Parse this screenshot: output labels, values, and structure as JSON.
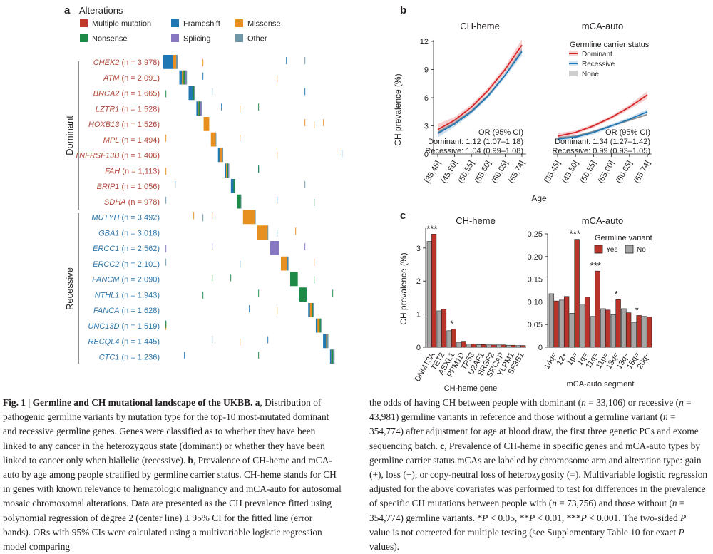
{
  "panel_a": {
    "label": "a",
    "legend_title": "Alterations",
    "legend": [
      {
        "name": "Multiple mutation",
        "color": "#c0392b"
      },
      {
        "name": "Frameshift",
        "color": "#1f77b4"
      },
      {
        "name": "Missense",
        "color": "#e8901f"
      },
      {
        "name": "Nonsense",
        "color": "#1e8a48"
      },
      {
        "name": "Splicing",
        "color": "#8878c3"
      },
      {
        "name": "Other",
        "color": "#6f97a7"
      }
    ],
    "group_labels": {
      "dominant": "Dominant",
      "recessive": "Recessive"
    },
    "genes": [
      {
        "gene": "CHEK2",
        "n": "3,978",
        "group": "dominant",
        "segments": [
          {
            "type": "Frameshift",
            "pct": 0.7
          },
          {
            "type": "Missense",
            "pct": 0.2
          },
          {
            "type": "Other",
            "pct": 0.1
          }
        ]
      },
      {
        "gene": "ATM",
        "n": "2,091",
        "group": "dominant",
        "segments": [
          {
            "type": "Frameshift",
            "pct": 0.35
          },
          {
            "type": "Missense",
            "pct": 0.2
          },
          {
            "type": "Nonsense",
            "pct": 0.25
          },
          {
            "type": "Splicing",
            "pct": 0.1
          },
          {
            "type": "Other",
            "pct": 0.1
          }
        ]
      },
      {
        "gene": "BRCA2",
        "n": "1,665",
        "group": "dominant",
        "segments": [
          {
            "type": "Frameshift",
            "pct": 0.7
          },
          {
            "type": "Nonsense",
            "pct": 0.2
          },
          {
            "type": "Other",
            "pct": 0.1
          }
        ]
      },
      {
        "gene": "LZTR1",
        "n": "1,528",
        "group": "dominant",
        "segments": [
          {
            "type": "Frameshift",
            "pct": 0.3
          },
          {
            "type": "Missense",
            "pct": 0.1
          },
          {
            "type": "Nonsense",
            "pct": 0.3
          },
          {
            "type": "Splicing",
            "pct": 0.2
          },
          {
            "type": "Other",
            "pct": 0.1
          }
        ]
      },
      {
        "gene": "HOXB13",
        "n": "1,526",
        "group": "dominant",
        "segments": [
          {
            "type": "Missense",
            "pct": 1.0
          }
        ]
      },
      {
        "gene": "MPL",
        "n": "1,494",
        "group": "dominant",
        "segments": [
          {
            "type": "Missense",
            "pct": 0.9
          },
          {
            "type": "Other",
            "pct": 0.1
          }
        ]
      },
      {
        "gene": "TNFRSF13B",
        "n": "1,406",
        "group": "dominant",
        "segments": [
          {
            "type": "Frameshift",
            "pct": 0.3
          },
          {
            "type": "Missense",
            "pct": 0.5
          },
          {
            "type": "Other",
            "pct": 0.2
          }
        ]
      },
      {
        "gene": "FAH",
        "n": "1,113",
        "group": "dominant",
        "segments": [
          {
            "type": "Frameshift",
            "pct": 0.3
          },
          {
            "type": "Missense",
            "pct": 0.3
          },
          {
            "type": "Nonsense",
            "pct": 0.2
          },
          {
            "type": "Splicing",
            "pct": 0.1
          },
          {
            "type": "Other",
            "pct": 0.1
          }
        ]
      },
      {
        "gene": "BRIP1",
        "n": "1,056",
        "group": "dominant",
        "segments": [
          {
            "type": "Frameshift",
            "pct": 0.6
          },
          {
            "type": "Nonsense",
            "pct": 0.3
          },
          {
            "type": "Other",
            "pct": 0.1
          }
        ]
      },
      {
        "gene": "SDHA",
        "n": "978",
        "group": "dominant",
        "segments": [
          {
            "type": "Frameshift",
            "pct": 0.1
          },
          {
            "type": "Nonsense",
            "pct": 0.8
          },
          {
            "type": "Other",
            "pct": 0.1
          }
        ]
      },
      {
        "gene": "MUTYH",
        "n": "3,492",
        "group": "recessive",
        "segments": [
          {
            "type": "Missense",
            "pct": 0.95
          },
          {
            "type": "Other",
            "pct": 0.05
          }
        ]
      },
      {
        "gene": "GBA1",
        "n": "3,018",
        "group": "recessive",
        "segments": [
          {
            "type": "Missense",
            "pct": 0.95
          },
          {
            "type": "Other",
            "pct": 0.05
          }
        ]
      },
      {
        "gene": "ERCC1",
        "n": "2,562",
        "group": "recessive",
        "segments": [
          {
            "type": "Splicing",
            "pct": 1.0
          }
        ]
      },
      {
        "gene": "ERCC2",
        "n": "2,101",
        "group": "recessive",
        "segments": [
          {
            "type": "Missense",
            "pct": 0.8
          },
          {
            "type": "Frameshift",
            "pct": 0.1
          },
          {
            "type": "Other",
            "pct": 0.1
          }
        ]
      },
      {
        "gene": "FANCM",
        "n": "2,090",
        "group": "recessive",
        "segments": [
          {
            "type": "Nonsense",
            "pct": 1.0
          }
        ]
      },
      {
        "gene": "NTHL1",
        "n": "1,943",
        "group": "recessive",
        "segments": [
          {
            "type": "Nonsense",
            "pct": 1.0
          }
        ]
      },
      {
        "gene": "FANCA",
        "n": "1,628",
        "group": "recessive",
        "segments": [
          {
            "type": "Frameshift",
            "pct": 0.3
          },
          {
            "type": "Missense",
            "pct": 0.3
          },
          {
            "type": "Nonsense",
            "pct": 0.2
          },
          {
            "type": "Other",
            "pct": 0.2
          }
        ]
      },
      {
        "gene": "UNC13D",
        "n": "1,519",
        "group": "recessive",
        "segments": [
          {
            "type": "Frameshift",
            "pct": 0.3
          },
          {
            "type": "Missense",
            "pct": 0.4
          },
          {
            "type": "Nonsense",
            "pct": 0.2
          },
          {
            "type": "Other",
            "pct": 0.1
          }
        ]
      },
      {
        "gene": "RECQL4",
        "n": "1,445",
        "group": "recessive",
        "segments": [
          {
            "type": "Frameshift",
            "pct": 0.6
          },
          {
            "type": "Missense",
            "pct": 0.2
          },
          {
            "type": "Other",
            "pct": 0.2
          }
        ]
      },
      {
        "gene": "CTC1",
        "n": "1,236",
        "group": "recessive",
        "segments": [
          {
            "type": "Frameshift",
            "pct": 0.3
          },
          {
            "type": "Missense",
            "pct": 0.1
          },
          {
            "type": "Nonsense",
            "pct": 0.3
          },
          {
            "type": "Other",
            "pct": 0.3
          }
        ]
      }
    ]
  },
  "panel_b": {
    "label": "b",
    "xlabel": "Age",
    "ylabel": "CH prevalence (%)",
    "legend_title": "Germline carrier status",
    "legend": [
      {
        "name": "Dominant",
        "color": "#d62728"
      },
      {
        "name": "Recessive",
        "color": "#1f77b4"
      },
      {
        "name": "None",
        "color": "#8a8a8a"
      }
    ],
    "colors": {
      "dominant": "#d62728",
      "recessive": "#1f77b4",
      "none": "#8a8a8a"
    }
  },
  "panel_c": {
    "label": "c",
    "legend_title": "Germline variant",
    "legend": [
      {
        "name": "Yes",
        "color": "#b8342a"
      },
      {
        "name": "No",
        "color": "#a6a6a6"
      }
    ]
  },
  "chart_data": [
    {
      "type": "line",
      "title": "CH-heme",
      "xlabel": "Age",
      "ylabel": "CH prevalence (%)",
      "categories": [
        "[35,45]",
        "(45,50]",
        "(50,55]",
        "(55,60]",
        "(60,65]",
        "(65,74]"
      ],
      "x": [
        0,
        1,
        2,
        3,
        4,
        5
      ],
      "ylim": [
        0,
        12
      ],
      "yticks": [
        "0",
        "3",
        "6",
        "9",
        "12"
      ],
      "series": [
        {
          "name": "Dominant",
          "values": [
            2.6,
            3.6,
            5.0,
            6.8,
            9.0,
            11.6
          ],
          "ci_halfwidth": [
            0.6,
            0.35,
            0.3,
            0.3,
            0.35,
            0.6
          ]
        },
        {
          "name": "Recessive",
          "values": [
            2.2,
            3.2,
            4.5,
            6.2,
            8.4,
            10.9
          ],
          "ci_halfwidth": [
            0.45,
            0.3,
            0.25,
            0.25,
            0.3,
            0.45
          ]
        },
        {
          "name": "None",
          "values": [
            2.3,
            3.3,
            4.6,
            6.3,
            8.4,
            11.0
          ],
          "ci_halfwidth": [
            0.15,
            0.1,
            0.1,
            0.1,
            0.1,
            0.15
          ]
        }
      ],
      "annotations": [
        "OR (95% CI)",
        "Dominant: 1.12 (1.07–1.18)",
        "Recessive: 1.04 (0.99–1.08)"
      ]
    },
    {
      "type": "line",
      "title": "mCA-auto",
      "xlabel": "Age",
      "ylabel": "CH prevalence (%)",
      "categories": [
        "[35,45]",
        "(45,50]",
        "(50,55]",
        "(55,60]",
        "(60,65]",
        "(65,74]"
      ],
      "x": [
        0,
        1,
        2,
        3,
        4,
        5
      ],
      "ylim": [
        0,
        12
      ],
      "series": [
        {
          "name": "Dominant",
          "values": [
            1.9,
            2.3,
            3.0,
            3.9,
            5.0,
            6.3
          ],
          "ci_halfwidth": [
            0.3,
            0.2,
            0.2,
            0.2,
            0.25,
            0.4
          ]
        },
        {
          "name": "Recessive",
          "values": [
            1.6,
            1.8,
            2.3,
            3.0,
            3.7,
            4.5
          ],
          "ci_halfwidth": [
            0.25,
            0.2,
            0.2,
            0.2,
            0.2,
            0.3
          ]
        },
        {
          "name": "None",
          "values": [
            1.7,
            1.9,
            2.4,
            3.0,
            3.6,
            4.2
          ],
          "ci_halfwidth": [
            0.1,
            0.1,
            0.1,
            0.1,
            0.1,
            0.1
          ]
        }
      ],
      "annotations": [
        "OR (95% CI)",
        "Dominant: 1.34 (1.27–1.42)",
        "Recessive: 0.99 (0.93–1.05)"
      ]
    },
    {
      "type": "bar",
      "title": "CH-heme",
      "xlabel": "CH-heme gene",
      "ylabel": "CH prevalence (%)",
      "categories": [
        "DNMT3A",
        "TET2",
        "ASXL1",
        "PPM1D",
        "TP53",
        "U2AF1",
        "SRSF2",
        "SRCAP",
        "YLPM1",
        "SF3B1"
      ],
      "ylim": [
        0,
        3.6
      ],
      "yticks": [
        "0",
        "1",
        "2",
        "3"
      ],
      "series": [
        {
          "name": "No",
          "values": [
            3.2,
            1.1,
            0.5,
            0.15,
            0.1,
            0.08,
            0.07,
            0.07,
            0.06,
            0.05
          ]
        },
        {
          "name": "Yes",
          "values": [
            3.42,
            1.15,
            0.55,
            0.18,
            0.1,
            0.08,
            0.07,
            0.07,
            0.06,
            0.05
          ]
        }
      ],
      "significance": [
        "***",
        "",
        "*",
        "",
        "",
        "",
        "",
        "",
        "",
        ""
      ]
    },
    {
      "type": "bar",
      "title": "mCA-auto",
      "xlabel": "mCA-auto segment",
      "ylabel": "",
      "categories": [
        "14q=",
        "12+",
        "1p=",
        "1q=",
        "11q=",
        "11p=",
        "13q=",
        "13q−",
        "15q=",
        "20q−"
      ],
      "ylim": [
        0,
        0.25
      ],
      "yticks": [
        "0",
        "0.05",
        "0.10",
        "0.15",
        "0.20",
        "0.25"
      ],
      "series": [
        {
          "name": "No",
          "values": [
            0.118,
            0.104,
            0.075,
            0.095,
            0.068,
            0.085,
            0.072,
            0.085,
            0.055,
            0.068
          ]
        },
        {
          "name": "Yes",
          "values": [
            0.102,
            0.112,
            0.238,
            0.111,
            0.168,
            0.082,
            0.105,
            0.076,
            0.07,
            0.067
          ]
        }
      ],
      "significance": [
        "",
        "",
        "***",
        "",
        "***",
        "",
        "*",
        "",
        "*",
        ""
      ]
    }
  ],
  "caption": {
    "fig_label": "Fig. 1 | ",
    "fig_title": "Germline and CH mutational landscape of the UKBB.",
    "left": {
      "a_label": " a",
      "a_text": ", Distribution of pathogenic germline variants by mutation type for the top-10 most-mutated dominant and recessive germline genes. Genes were classified as to whether they have been linked to any cancer in the heterozygous state (dominant) or whether they have been linked to cancer only when biallelic (recessive). ",
      "b_label": "b",
      "b_text": ", Prevalence of CH-heme and mCA-auto by age among people stratified by germline carrier status. CH-heme stands for CH in genes with known relevance to hematologic malignancy and mCA-auto for autosomal mosaic chromosomal alterations. Data are presented as the CH prevalence fitted using polynomial regression of degree 2 (center line) ± 95% CI for the fitted line (error bands). ORs with 95% CIs were calculated using a multivariable logistic regression model comparing"
    },
    "right": {
      "t1": "the odds of having CH between people with dominant (",
      "n1": "n",
      "t2": " = 33,106) or recessive (",
      "n2": "n",
      "t3": " = 43,981) germline variants in reference and those without a germline variant (",
      "n3": "n",
      "t4": " = 354,774) after adjustment for age at blood draw, the first three genetic PCs and exome sequencing batch. ",
      "c_label": "c",
      "t5": ", Prevalence of CH-heme in specific genes and mCA-auto types by germline carrier status.mCAs are labeled by chromosome arm and alteration type: gain (+), loss (−), or copy-neutral loss of heterozygosity (=). Multivariable logistic regression adjusted for the above covariates was performed to test for differences in the prevalence of specific CH mutations between people with (",
      "n4": "n",
      "t6": " = 73,756) and those without (",
      "n5": "n",
      "t7": " = 354,774) germline variants. *",
      "p1": "P",
      "t8": " < 0.05, **",
      "p2": "P",
      "t9": " < 0.01, ***",
      "p3": "P",
      "t10": " < 0.001. The two-sided ",
      "p4": "P",
      "t11": " value is not corrected for multiple testing (see Supplementary Table 10 for exact ",
      "p5": "P",
      "t12": " values)."
    }
  }
}
